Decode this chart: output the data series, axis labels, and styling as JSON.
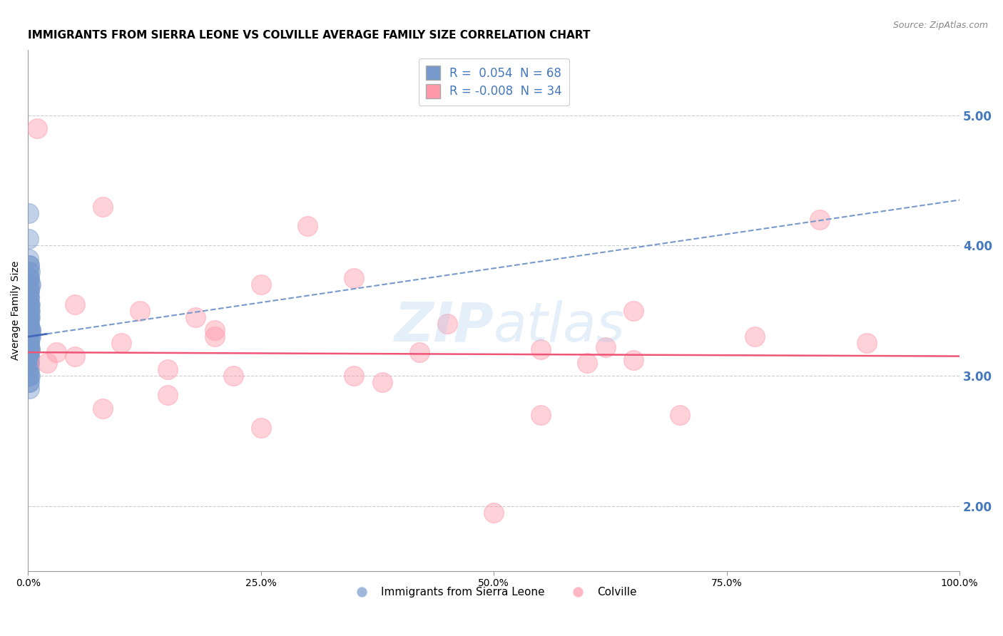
{
  "title": "IMMIGRANTS FROM SIERRA LEONE VS COLVILLE AVERAGE FAMILY SIZE CORRELATION CHART",
  "source": "Source: ZipAtlas.com",
  "ylabel": "Average Family Size",
  "xlim": [
    0,
    100
  ],
  "ylim": [
    1.5,
    5.5
  ],
  "yticks": [
    2.0,
    3.0,
    4.0,
    5.0
  ],
  "xtick_vals": [
    0,
    25,
    50,
    75,
    100
  ],
  "xtick_labels": [
    "0.0%",
    "25.0%",
    "50.0%",
    "75.0%",
    "100.0%"
  ],
  "color_blue": "#7799CC",
  "color_pink": "#FF99AA",
  "trendline_blue": [
    0.0,
    3.3,
    100.0,
    4.35
  ],
  "trendline_pink": [
    0.0,
    3.18,
    100.0,
    3.15
  ],
  "blue_points": [
    [
      0.05,
      4.25
    ],
    [
      0.08,
      4.05
    ],
    [
      0.1,
      3.85
    ],
    [
      0.1,
      3.75
    ],
    [
      0.12,
      3.65
    ],
    [
      0.15,
      3.6
    ],
    [
      0.18,
      3.7
    ],
    [
      0.2,
      3.55
    ],
    [
      0.05,
      3.5
    ],
    [
      0.08,
      3.45
    ],
    [
      0.1,
      3.4
    ],
    [
      0.12,
      3.35
    ],
    [
      0.15,
      3.5
    ],
    [
      0.18,
      3.35
    ],
    [
      0.05,
      3.35
    ],
    [
      0.08,
      3.3
    ],
    [
      0.1,
      3.25
    ],
    [
      0.12,
      3.2
    ],
    [
      0.15,
      3.3
    ],
    [
      0.18,
      3.2
    ],
    [
      0.05,
      3.2
    ],
    [
      0.08,
      3.15
    ],
    [
      0.1,
      3.1
    ],
    [
      0.12,
      3.05
    ],
    [
      0.15,
      3.15
    ],
    [
      0.18,
      3.0
    ],
    [
      0.05,
      3.0
    ],
    [
      0.08,
      2.95
    ],
    [
      0.1,
      2.9
    ],
    [
      0.05,
      3.55
    ],
    [
      0.08,
      3.4
    ],
    [
      0.12,
      3.25
    ],
    [
      0.15,
      3.4
    ],
    [
      0.2,
      3.3
    ],
    [
      0.25,
      3.35
    ],
    [
      0.05,
      3.65
    ],
    [
      0.1,
      3.45
    ],
    [
      0.05,
      3.8
    ],
    [
      0.08,
      3.6
    ],
    [
      0.15,
      3.45
    ],
    [
      0.2,
      3.5
    ],
    [
      0.05,
      3.1
    ],
    [
      0.08,
      3.05
    ],
    [
      0.1,
      3.0
    ],
    [
      0.12,
      2.95
    ],
    [
      0.05,
      3.25
    ],
    [
      0.08,
      3.2
    ],
    [
      0.1,
      3.15
    ],
    [
      0.12,
      3.1
    ],
    [
      0.05,
      3.4
    ],
    [
      0.08,
      3.35
    ],
    [
      0.1,
      3.55
    ],
    [
      0.12,
      3.5
    ],
    [
      0.15,
      3.25
    ],
    [
      0.2,
      3.2
    ],
    [
      0.25,
      3.35
    ],
    [
      0.3,
      3.3
    ],
    [
      0.05,
      3.7
    ],
    [
      0.08,
      3.75
    ],
    [
      0.1,
      3.65
    ],
    [
      0.12,
      3.6
    ],
    [
      0.15,
      3.55
    ],
    [
      0.2,
      3.45
    ],
    [
      0.05,
      3.9
    ],
    [
      0.1,
      3.85
    ],
    [
      0.15,
      3.75
    ],
    [
      0.2,
      3.8
    ],
    [
      0.25,
      3.7
    ]
  ],
  "pink_points": [
    [
      1.0,
      4.9
    ],
    [
      8.0,
      4.3
    ],
    [
      30.0,
      4.15
    ],
    [
      85.0,
      4.2
    ],
    [
      35.0,
      3.75
    ],
    [
      25.0,
      3.7
    ],
    [
      5.0,
      3.55
    ],
    [
      12.0,
      3.5
    ],
    [
      18.0,
      3.45
    ],
    [
      65.0,
      3.5
    ],
    [
      45.0,
      3.4
    ],
    [
      78.0,
      3.3
    ],
    [
      55.0,
      3.2
    ],
    [
      2.0,
      3.1
    ],
    [
      15.0,
      3.05
    ],
    [
      22.0,
      3.0
    ],
    [
      38.0,
      2.95
    ],
    [
      5.0,
      3.15
    ],
    [
      10.0,
      3.25
    ],
    [
      20.0,
      3.35
    ],
    [
      8.0,
      2.75
    ],
    [
      55.0,
      2.7
    ],
    [
      70.0,
      2.7
    ],
    [
      25.0,
      2.6
    ],
    [
      15.0,
      2.85
    ],
    [
      35.0,
      3.0
    ],
    [
      60.0,
      3.1
    ],
    [
      20.0,
      3.3
    ],
    [
      50.0,
      1.95
    ],
    [
      90.0,
      3.25
    ],
    [
      3.0,
      3.18
    ],
    [
      62.0,
      3.22
    ],
    [
      42.0,
      3.18
    ],
    [
      65.0,
      3.12
    ]
  ],
  "background_color": "#FFFFFF",
  "grid_color": "#CCCCCC",
  "title_fontsize": 11,
  "axis_fontsize": 10,
  "tick_fontsize": 9,
  "right_ytick_color": "#4477BB",
  "legend_label_color": "#4477BB"
}
